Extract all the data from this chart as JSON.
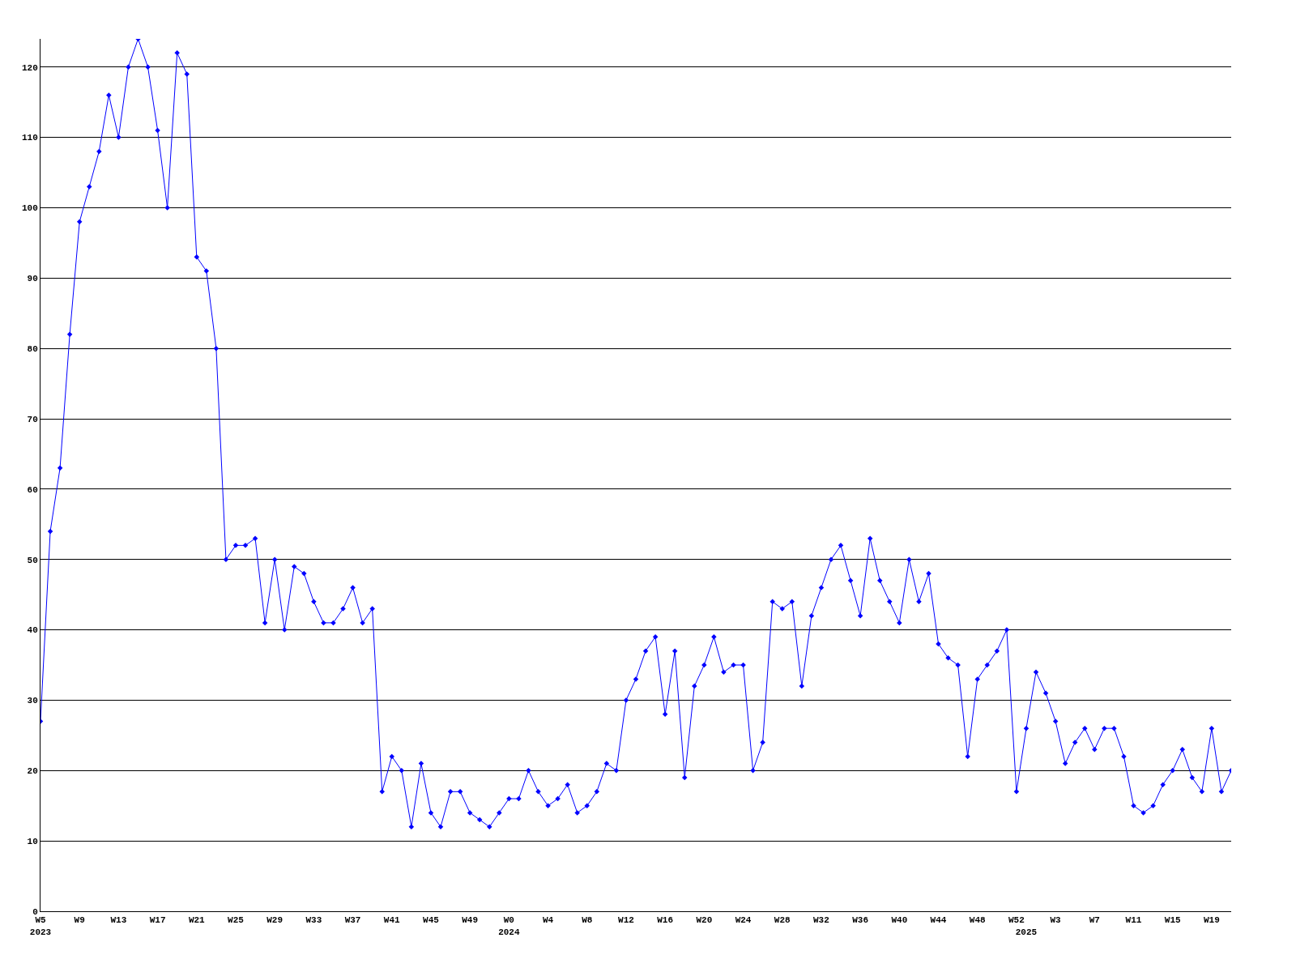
{
  "chart_data": {
    "type": "line",
    "categories": [
      "W5\n2023",
      null,
      null,
      null,
      "W9",
      null,
      null,
      null,
      "W13",
      null,
      null,
      null,
      "W17",
      null,
      null,
      null,
      "W21",
      null,
      null,
      null,
      "W25",
      null,
      null,
      null,
      "W29",
      null,
      null,
      null,
      "W33",
      null,
      null,
      null,
      "W37",
      null,
      null,
      null,
      "W41",
      null,
      null,
      null,
      "W45",
      null,
      null,
      null,
      "W49",
      null,
      null,
      null,
      "W0\n2024",
      null,
      null,
      null,
      "W4",
      null,
      null,
      null,
      "W8",
      null,
      null,
      null,
      "W12",
      null,
      null,
      null,
      "W16",
      null,
      null,
      null,
      "W20",
      null,
      null,
      null,
      "W24",
      null,
      null,
      null,
      "W28",
      null,
      null,
      null,
      "W32",
      null,
      null,
      null,
      "W36",
      null,
      null,
      null,
      "W40",
      null,
      null,
      null,
      "W44",
      null,
      null,
      null,
      "W48",
      null,
      null,
      null,
      "W52",
      "\n2025",
      null,
      null,
      "W3",
      null,
      null,
      null,
      "W7",
      null,
      null,
      null,
      "W11",
      null,
      null,
      null,
      "W15",
      null,
      null,
      null,
      "W19",
      null,
      null
    ],
    "series": [
      {
        "color": "#0000ff",
        "values": [
          27,
          54,
          63,
          82,
          98,
          103,
          108,
          116,
          110,
          120,
          124,
          120,
          111,
          100,
          122,
          119,
          93,
          91,
          80,
          50,
          52,
          52,
          53,
          41,
          50,
          40,
          49,
          48,
          44,
          41,
          41,
          43,
          46,
          41,
          43,
          17,
          22,
          20,
          12,
          21,
          14,
          12,
          17,
          17,
          14,
          13,
          12,
          14,
          16,
          16,
          20,
          17,
          15,
          16,
          18,
          14,
          15,
          17,
          21,
          20,
          30,
          33,
          37,
          39,
          28,
          37,
          19,
          32,
          35,
          39,
          34,
          35,
          35,
          20,
          24,
          44,
          43,
          44,
          32,
          42,
          46,
          50,
          52,
          47,
          42,
          53,
          47,
          44,
          41,
          50,
          44,
          48,
          38,
          36,
          35,
          22,
          33,
          35,
          37,
          40,
          17,
          26,
          34,
          31,
          27,
          21,
          24,
          26,
          23,
          26,
          26,
          22,
          15,
          14,
          15,
          18,
          20,
          23,
          19,
          17,
          26,
          17,
          20
        ]
      }
    ],
    "ylim": [
      0,
      124
    ],
    "yticks": [
      0,
      10,
      20,
      30,
      40,
      50,
      60,
      70,
      80,
      90,
      100,
      110,
      120
    ],
    "grid": "y",
    "marker": "diamond",
    "line_style": "solid"
  }
}
